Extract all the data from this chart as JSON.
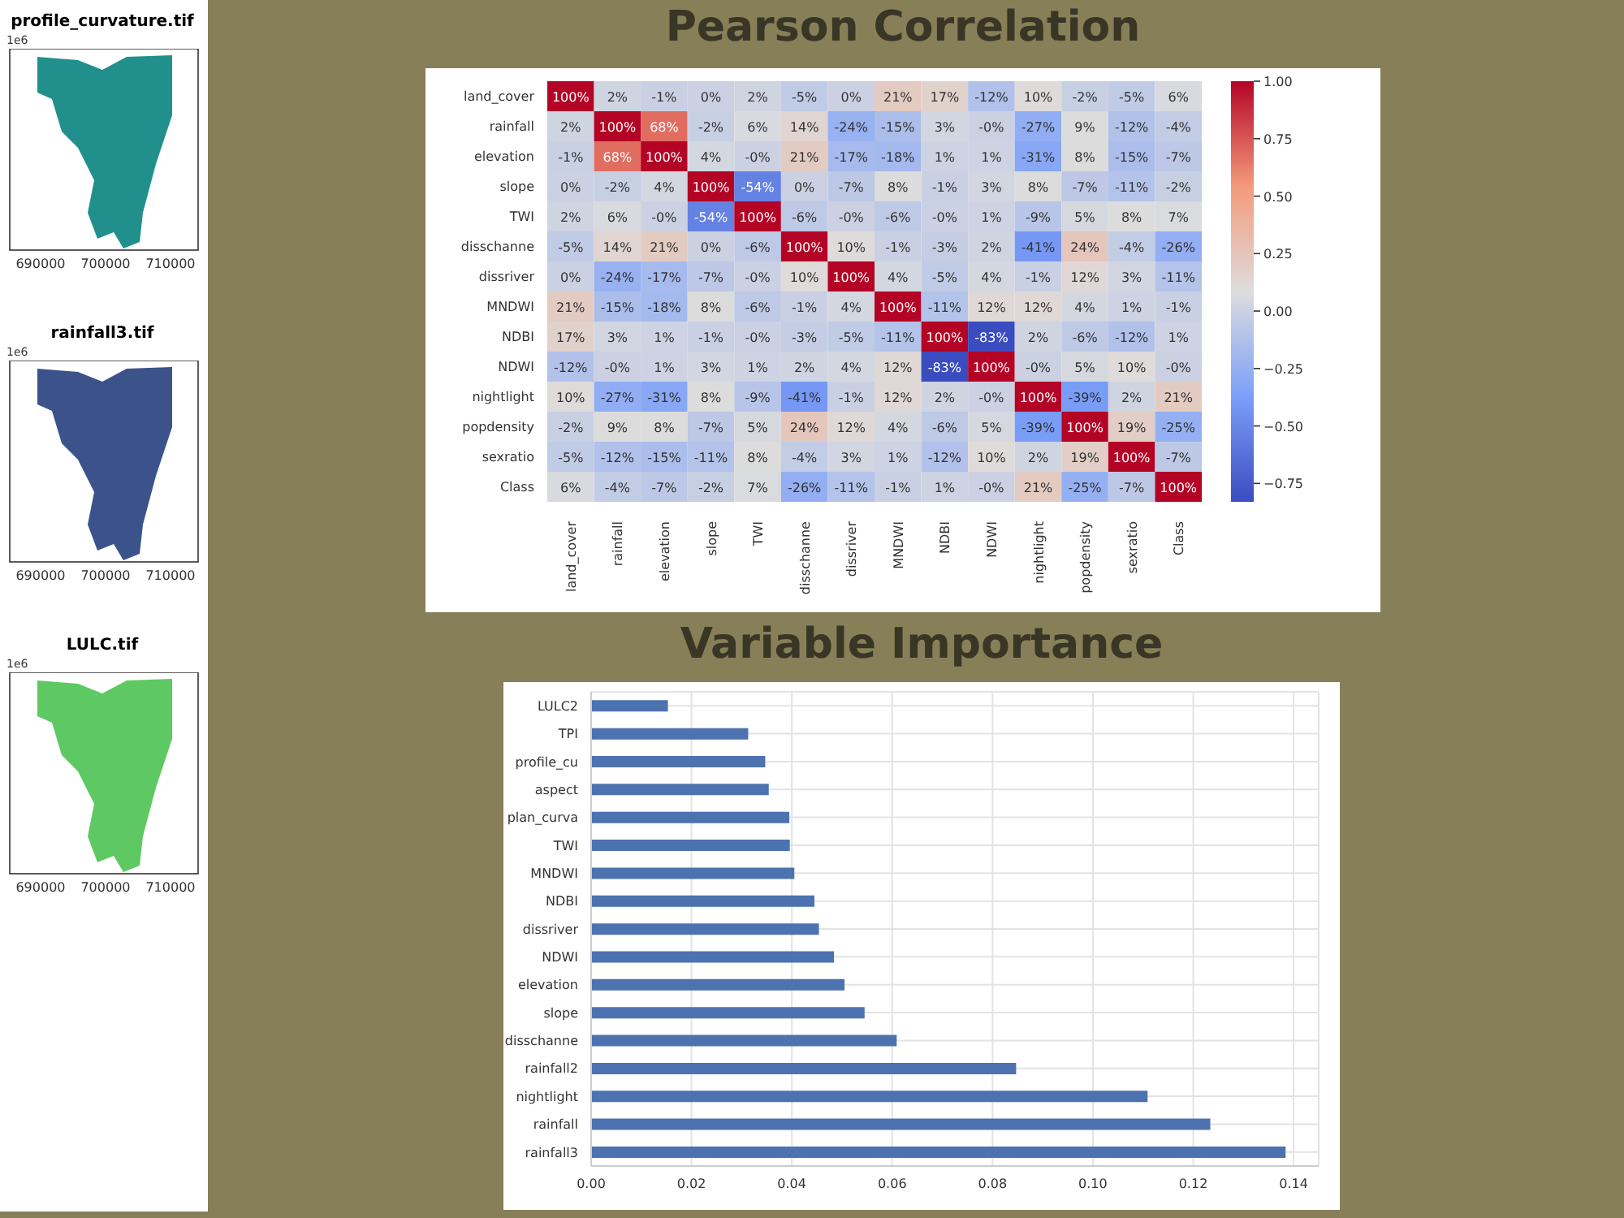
{
  "chart_data": [
    {
      "type": "other",
      "title": "profile_curvature.tif",
      "annotations": [
        "1e6",
        "690000",
        "700000",
        "710000"
      ]
    },
    {
      "type": "other",
      "title": "rainfall3.tif",
      "annotations": [
        "1e6",
        "690000",
        "700000",
        "710000"
      ]
    },
    {
      "type": "other",
      "title": "LULC.tif",
      "annotations": [
        "1e6",
        "690000",
        "700000",
        "710000"
      ]
    },
    {
      "type": "heatmap",
      "title": "Pearson Correlation",
      "categories": [
        "land_cover",
        "rainfall",
        "elevation",
        "slope",
        "TWI",
        "disschanne",
        "dissriver",
        "MNDWI",
        "NDBI",
        "NDWI",
        "nightlight",
        "popdensity",
        "sexratio",
        "Class"
      ],
      "y_categories": [
        "land_cover",
        "rainfall",
        "elevation",
        "slope",
        "TWI",
        "disschanne",
        "dissriver",
        "MNDWI",
        "NDBI",
        "NDWI",
        "nightlight",
        "popdensity",
        "sexratio",
        "Class"
      ],
      "cells": [
        [
          1,
          0.02,
          -0.01,
          0,
          0.02,
          -0.05,
          0,
          0.21,
          0.17,
          -0.12,
          0.1,
          -0.02,
          -0.05,
          0.06
        ],
        [
          0.02,
          1,
          0.68,
          -0.02,
          0.06,
          0.14,
          -0.24,
          -0.15,
          0.03,
          0,
          -0.27,
          0.09,
          -0.12,
          -0.04
        ],
        [
          -0.01,
          0.68,
          1,
          0.04,
          0,
          0.21,
          -0.17,
          -0.18,
          0.01,
          0.01,
          -0.31,
          0.08,
          -0.15,
          -0.07
        ],
        [
          0,
          -0.02,
          0.04,
          1,
          -0.54,
          0,
          -0.07,
          0.08,
          -0.01,
          0.03,
          0.08,
          -0.07,
          -0.11,
          -0.02
        ],
        [
          0.02,
          0.06,
          0,
          -0.54,
          1,
          -0.06,
          0,
          -0.06,
          0,
          0.01,
          -0.09,
          0.05,
          0.08,
          0.07
        ],
        [
          -0.05,
          0.14,
          0.21,
          0,
          -0.06,
          1,
          0.1,
          -0.01,
          -0.03,
          0.02,
          -0.41,
          0.24,
          -0.04,
          -0.26
        ],
        [
          0,
          -0.24,
          -0.17,
          -0.07,
          0,
          0.1,
          1,
          0.04,
          -0.05,
          0.04,
          -0.01,
          0.12,
          0.03,
          -0.11
        ],
        [
          0.21,
          -0.15,
          -0.18,
          0.08,
          -0.06,
          -0.01,
          0.04,
          1,
          -0.11,
          0.12,
          0.12,
          0.04,
          0.01,
          -0.01
        ],
        [
          0.17,
          0.03,
          0.01,
          -0.01,
          0,
          -0.03,
          -0.05,
          -0.11,
          1,
          -0.83,
          0.02,
          -0.06,
          -0.12,
          0.01
        ],
        [
          -0.12,
          0,
          0.01,
          0.03,
          0.01,
          0.02,
          0.04,
          0.12,
          -0.83,
          1,
          0,
          0.05,
          0.1,
          0
        ],
        [
          0.1,
          -0.27,
          -0.31,
          0.08,
          -0.09,
          -0.41,
          -0.01,
          0.12,
          0.02,
          0,
          1,
          -0.39,
          0.02,
          0.21
        ],
        [
          -0.02,
          0.09,
          0.08,
          -0.07,
          0.05,
          0.24,
          0.12,
          0.04,
          -0.06,
          0.05,
          -0.39,
          1,
          0.19,
          -0.25
        ],
        [
          -0.05,
          -0.12,
          -0.15,
          -0.11,
          0.08,
          -0.04,
          0.03,
          0.01,
          -0.12,
          0.1,
          0.02,
          0.19,
          1,
          -0.07
        ],
        [
          0.06,
          -0.04,
          -0.07,
          -0.02,
          0.07,
          -0.26,
          -0.11,
          -0.01,
          0.01,
          0,
          0.21,
          -0.25,
          -0.07,
          1
        ]
      ],
      "cell_labels": [
        [
          "100%",
          "2%",
          "-1%",
          "0%",
          "2%",
          "-5%",
          "0%",
          "21%",
          "17%",
          "-12%",
          "10%",
          "-2%",
          "-5%",
          "6%"
        ],
        [
          "2%",
          "100%",
          "68%",
          "-2%",
          "6%",
          "14%",
          "-24%",
          "-15%",
          "3%",
          "-0%",
          "-27%",
          "9%",
          "-12%",
          "-4%"
        ],
        [
          "-1%",
          "68%",
          "100%",
          "4%",
          "-0%",
          "21%",
          "-17%",
          "-18%",
          "1%",
          "1%",
          "-31%",
          "8%",
          "-15%",
          "-7%"
        ],
        [
          "0%",
          "-2%",
          "4%",
          "100%",
          "-54%",
          "0%",
          "-7%",
          "8%",
          "-1%",
          "3%",
          "8%",
          "-7%",
          "-11%",
          "-2%"
        ],
        [
          "2%",
          "6%",
          "-0%",
          "-54%",
          "100%",
          "-6%",
          "-0%",
          "-6%",
          "-0%",
          "1%",
          "-9%",
          "5%",
          "8%",
          "7%"
        ],
        [
          "-5%",
          "14%",
          "21%",
          "0%",
          "-6%",
          "100%",
          "10%",
          "-1%",
          "-3%",
          "2%",
          "-41%",
          "24%",
          "-4%",
          "-26%"
        ],
        [
          "0%",
          "-24%",
          "-17%",
          "-7%",
          "-0%",
          "10%",
          "100%",
          "4%",
          "-5%",
          "4%",
          "-1%",
          "12%",
          "3%",
          "-11%"
        ],
        [
          "21%",
          "-15%",
          "-18%",
          "8%",
          "-6%",
          "-1%",
          "4%",
          "100%",
          "-11%",
          "12%",
          "12%",
          "4%",
          "1%",
          "-1%"
        ],
        [
          "17%",
          "3%",
          "1%",
          "-1%",
          "-0%",
          "-3%",
          "-5%",
          "-11%",
          "100%",
          "-83%",
          "2%",
          "-6%",
          "-12%",
          "1%"
        ],
        [
          "-12%",
          "-0%",
          "1%",
          "3%",
          "1%",
          "2%",
          "4%",
          "12%",
          "-83%",
          "100%",
          "-0%",
          "5%",
          "10%",
          "-0%"
        ],
        [
          "10%",
          "-27%",
          "-31%",
          "8%",
          "-9%",
          "-41%",
          "-1%",
          "12%",
          "2%",
          "-0%",
          "100%",
          "-39%",
          "2%",
          "21%"
        ],
        [
          "-2%",
          "9%",
          "8%",
          "-7%",
          "5%",
          "24%",
          "12%",
          "4%",
          "-6%",
          "5%",
          "-39%",
          "100%",
          "19%",
          "-25%"
        ],
        [
          "-5%",
          "-12%",
          "-15%",
          "-11%",
          "8%",
          "-4%",
          "3%",
          "1%",
          "-12%",
          "10%",
          "2%",
          "19%",
          "100%",
          "-7%"
        ],
        [
          "6%",
          "-4%",
          "-7%",
          "-2%",
          "7%",
          "-26%",
          "-11%",
          "-1%",
          "1%",
          "-0%",
          "21%",
          "-25%",
          "-7%",
          "100%"
        ]
      ],
      "clim": [
        -0.83,
        1
      ],
      "cticks": [
        {
          "value": 1,
          "label": "1.00"
        },
        {
          "value": 0.75,
          "label": "0.75"
        },
        {
          "value": 0.5,
          "label": "0.50"
        },
        {
          "value": 0.25,
          "label": "0.25"
        },
        {
          "value": 0,
          "label": "0.00"
        },
        {
          "value": -0.25,
          "label": "−0.25"
        },
        {
          "value": -0.5,
          "label": "−0.50"
        },
        {
          "value": -0.75,
          "label": "−0.75"
        }
      ]
    },
    {
      "type": "bar",
      "title": "Variable Importance",
      "orientation": "horizontal",
      "categories": [
        "LULC2",
        "TPI",
        "profile_cu",
        "aspect",
        "plan_curva",
        "TWI",
        "MNDWI",
        "NDBI",
        "dissriver",
        "NDWI",
        "elevation",
        "slope",
        "disschanne",
        "rainfall2",
        "nightlight",
        "rainfall",
        "rainfall3"
      ],
      "values": [
        0.0153,
        0.0313,
        0.0347,
        0.0354,
        0.0395,
        0.0396,
        0.0405,
        0.0445,
        0.0454,
        0.0484,
        0.0505,
        0.0545,
        0.0609,
        0.0847,
        0.1109,
        0.1234,
        0.1384
      ],
      "color": "#4c72b0",
      "xlim": [
        0,
        0.145
      ],
      "xticks": [
        {
          "value": 0,
          "label": "0.00"
        },
        {
          "value": 0.02,
          "label": "0.02"
        },
        {
          "value": 0.04,
          "label": "0.04"
        },
        {
          "value": 0.06,
          "label": "0.06"
        },
        {
          "value": 0.08,
          "label": "0.08"
        },
        {
          "value": 0.1,
          "label": "0.10"
        },
        {
          "value": 0.12,
          "label": "0.12"
        },
        {
          "value": 0.14,
          "label": "0.14"
        }
      ],
      "grid": true
    }
  ]
}
